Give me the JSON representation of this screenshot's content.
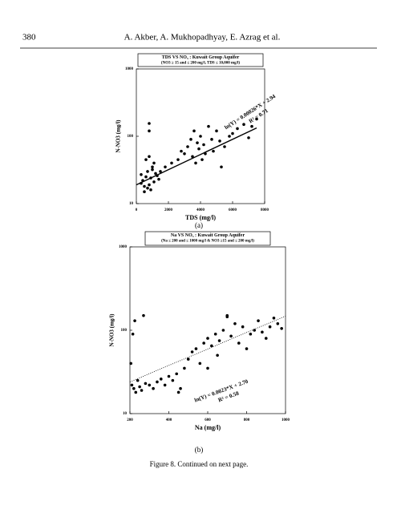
{
  "header": {
    "page": "380",
    "authors": "A. Akber, A. Mukhopadhyay, E. Azrag et al."
  },
  "chart_data": [
    {
      "type": "scatter",
      "title": "TDS VS NO₃ : Kuwait Group Aquifer",
      "subtitle": "(NO3 ≥ 15 and ≤ 200 mg/l, TDS ≤ 10,000 mg/l)",
      "x_label": "TDS (mg/l)",
      "y_label": "N-NO3 (mg/l)",
      "caption": "(a)",
      "log_y": true,
      "color": "#000000",
      "xlim": [
        0,
        8000
      ],
      "xticks": [
        0,
        2000,
        4000,
        6000,
        8000
      ],
      "ylim": [
        10,
        1000
      ],
      "yticks": [
        10,
        100,
        1000
      ],
      "annotations": [
        "ln(Y) = 0.00026*X + 2.94",
        "R² = 0.71"
      ],
      "trend_style": "solid",
      "trend_x": [
        0,
        7500
      ],
      "trend_y": [
        19,
        133
      ],
      "x": [
        300,
        400,
        500,
        600,
        700,
        800,
        900,
        1000,
        1100,
        1200,
        1300,
        1400,
        500,
        700,
        900,
        1100,
        300,
        600,
        800,
        1000,
        1500,
        1800,
        2200,
        2600,
        2800,
        3000,
        3200,
        3400,
        3500,
        3600,
        3800,
        3900,
        4000,
        4200,
        4300,
        4500,
        4700,
        4800,
        5000,
        5200,
        5500,
        5800,
        6000,
        6300,
        6700,
        7000,
        7200,
        7500,
        800,
        3700,
        4100,
        5300,
        800
      ],
      "values": [
        20,
        22,
        18,
        25,
        30,
        19,
        24,
        35,
        21,
        28,
        26,
        23,
        15,
        17,
        16,
        40,
        27,
        45,
        50,
        32,
        30,
        35,
        40,
        45,
        60,
        55,
        70,
        90,
        50,
        120,
        80,
        65,
        100,
        75,
        55,
        140,
        90,
        60,
        120,
        85,
        70,
        100,
        110,
        130,
        150,
        95,
        140,
        180,
        155,
        40,
        45,
        35,
        120
      ]
    },
    {
      "type": "scatter",
      "title": "Na VS NO₃ : Kuwait Group Aquifer",
      "subtitle": "(Na ≤ 200 and ≤ 1000 mg/l & NO3 ≥15 and ≤ 200 mg/l)",
      "x_label": "Na (mg/l)",
      "y_label": "N-NO3 (mg/l)",
      "caption": "(b)",
      "log_y": true,
      "color": "#000000",
      "xlim": [
        200,
        1000
      ],
      "xticks": [
        200,
        400,
        600,
        800,
        1000
      ],
      "ylim": [
        10,
        1000
      ],
      "yticks": [
        10,
        100,
        1000
      ],
      "annotations": [
        "ln(Y) = 0.0023*X + 2.70",
        "R² = 0.58"
      ],
      "trend_style": "dotted",
      "trend_x": [
        200,
        1000
      ],
      "trend_y": [
        24,
        148
      ],
      "x": [
        205,
        210,
        220,
        230,
        240,
        250,
        260,
        280,
        300,
        320,
        340,
        360,
        380,
        400,
        420,
        440,
        460,
        480,
        500,
        520,
        540,
        560,
        580,
        600,
        620,
        640,
        660,
        680,
        700,
        720,
        740,
        760,
        780,
        800,
        820,
        840,
        860,
        880,
        900,
        920,
        940,
        960,
        980,
        215,
        225,
        270,
        450,
        600,
        650,
        700
      ],
      "values": [
        40,
        22,
        20,
        18,
        25,
        21,
        19,
        23,
        22,
        20,
        24,
        26,
        22,
        28,
        25,
        30,
        20,
        35,
        45,
        55,
        60,
        40,
        70,
        80,
        65,
        90,
        75,
        100,
        150,
        85,
        120,
        70,
        110,
        60,
        90,
        100,
        130,
        95,
        80,
        110,
        140,
        120,
        105,
        90,
        130,
        150,
        18,
        35,
        50,
        145
      ]
    }
  ],
  "figure_caption": "Figure 8. Continued on next page."
}
